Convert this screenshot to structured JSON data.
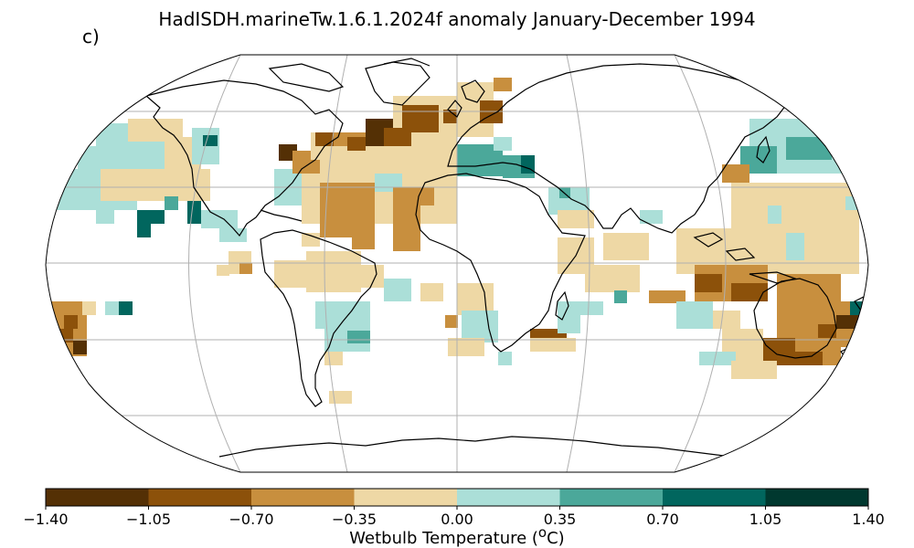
{
  "title": "HadISDH.marineTw.1.6.1.2024f anomaly January-December 1994",
  "panel_label": "c)",
  "projection": "Robinson",
  "colorbar": {
    "label_text": "Wetbulb Temperature (",
    "label_sup": "o",
    "label_end": "C)",
    "ticks": [
      "−1.40",
      "−1.05",
      "−0.70",
      "−0.35",
      "0.00",
      "0.35",
      "0.70",
      "1.05",
      "1.40"
    ],
    "colors": [
      "#543005",
      "#8c510a",
      "#c88f3e",
      "#eed8a5",
      "#abdfd8",
      "#4ba89a",
      "#01665e",
      "#00382f"
    ]
  },
  "colors": {
    "ocean_missing": "#ffffff",
    "coastline": "#000000",
    "grid": "#b0b0b0"
  }
}
